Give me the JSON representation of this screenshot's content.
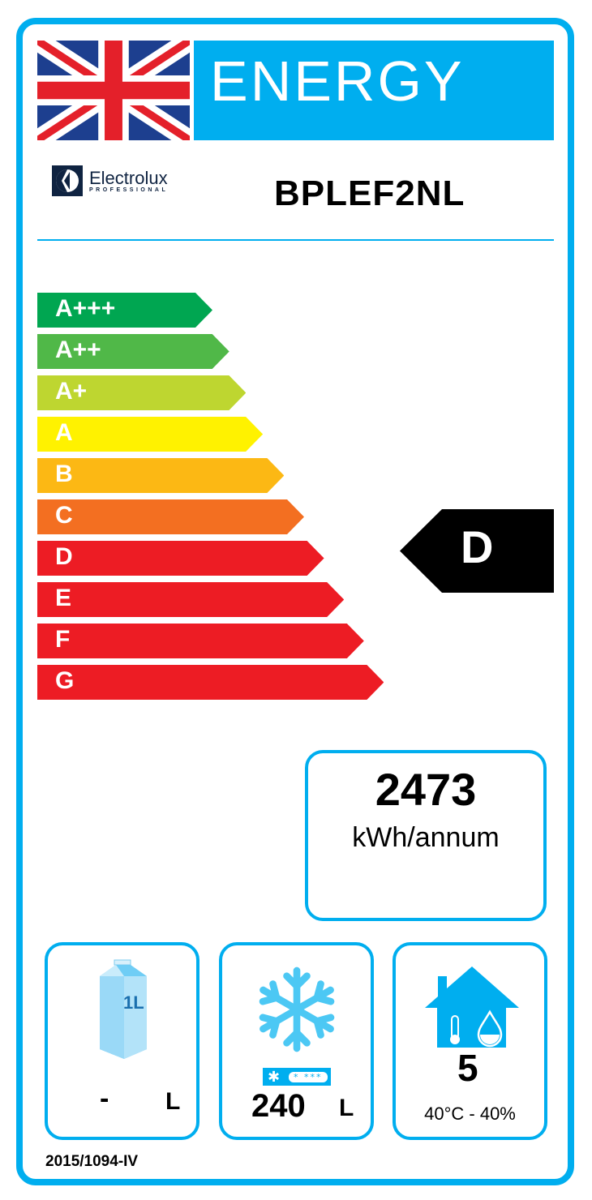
{
  "header": {
    "title": "ENERGY",
    "flag": "uk-flag-icon"
  },
  "brand": {
    "name": "Electrolux",
    "subline": "PROFESSIONAL"
  },
  "model": "BPLEF2NL",
  "classes": [
    {
      "label": "A+++",
      "color": "#00a651"
    },
    {
      "label": "A++",
      "color": "#50b848"
    },
    {
      "label": "A+",
      "color": "#bed630"
    },
    {
      "label": "A",
      "color": "#fff200"
    },
    {
      "label": "B",
      "color": "#fcb814"
    },
    {
      "label": "C",
      "color": "#f36f21"
    },
    {
      "label": "D",
      "color": "#ed1c24"
    },
    {
      "label": "E",
      "color": "#ed1c24"
    },
    {
      "label": "F",
      "color": "#ed1c24"
    },
    {
      "label": "G",
      "color": "#ed1c24"
    }
  ],
  "rating": "D",
  "consumption": {
    "value": "2473",
    "unit": "kWh/annum"
  },
  "fresh_volume": {
    "icon": "milk-carton-icon",
    "carton_label": "1L",
    "value": "-",
    "unit": "L"
  },
  "frozen_volume": {
    "icon": "snowflake-icon",
    "stars": "* ***",
    "value": "240",
    "unit": "L"
  },
  "climate": {
    "icon": "house-climate-icon",
    "class": "5",
    "conditions": "40°C - 40%"
  },
  "regulation": "2015/1094-IV",
  "accent_color": "#00aeef"
}
